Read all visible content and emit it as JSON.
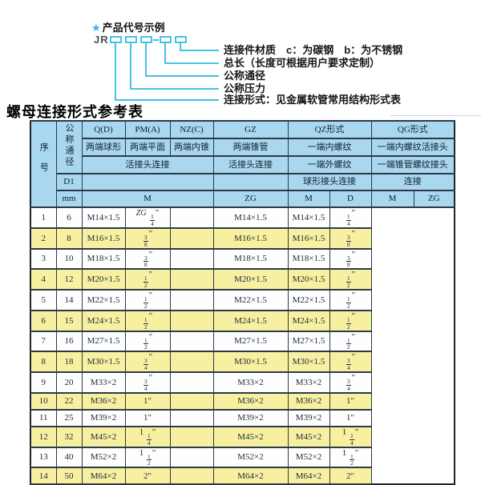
{
  "diagram": {
    "star": "★",
    "title": "产品代号示例",
    "prefix": "JR",
    "labels": [
      "连接件材质　c：为碳钢　b：为不锈钢",
      "总长（长度可根据用户要求定制）",
      "公称通径",
      "公称压力",
      "连接形式：见金属软管常用结构形式表"
    ]
  },
  "table_title": "螺母连接形式参考表",
  "table": {
    "header": {
      "seq": "序号",
      "dn": "公称通径",
      "d1": "D1",
      "mm": "mm",
      "q": "Q(D)",
      "q_desc": "两端球形",
      "pm": "PM(A)",
      "pm_desc": "两端平面",
      "nz": "NZ(C)",
      "nz_desc": "两端内锥",
      "union_conn": "活接头连接",
      "gz": "GZ",
      "gz_desc": "两端锥管",
      "gz_conn": "活接头连接",
      "qz": "QZ形式",
      "qz_desc1": "一端内螺纹",
      "qz_desc2": "一端外螺纹",
      "qz_conn": "球形接头连接",
      "qg": "QG形式",
      "qg_desc1": "一端内螺纹活接头",
      "qg_desc2": "一端锥管螺纹接头",
      "qg_conn": "连接",
      "m": "M",
      "d": "D",
      "zg": "ZG"
    },
    "columns": [
      "seq",
      "dn_mm",
      "m",
      "gz_zg",
      "qz_m",
      "qz_d",
      "qg_m",
      "qg_zg"
    ],
    "rows": [
      [
        "1",
        "6",
        "M14×1.5",
        "ZG 1/4\"",
        "",
        "M14×1.5",
        "M14×1.5",
        "1/4\""
      ],
      [
        "2",
        "8",
        "M16×1.5",
        "3/8\"",
        "",
        "M16×1.5",
        "M16×1.5",
        "3/8\""
      ],
      [
        "3",
        "10",
        "M18×1.5",
        "3/8\"",
        "",
        "M18×1.5",
        "M18×1.5",
        "3/8\""
      ],
      [
        "4",
        "12",
        "M20×1.5",
        "1/2\"",
        "",
        "M20×1.5",
        "M20×1.5",
        "1/2\""
      ],
      [
        "5",
        "14",
        "M22×1.5",
        "1/2\"",
        "",
        "M22×1.5",
        "M22×1.5",
        "1/2\""
      ],
      [
        "6",
        "15",
        "M24×1.5",
        "1/2\"",
        "",
        "M24×1.5",
        "M24×1.5",
        "1/2\""
      ],
      [
        "7",
        "16",
        "M27×1.5",
        "1/2\"",
        "",
        "M27×1.5",
        "M27×1.5",
        "1/2\""
      ],
      [
        "8",
        "18",
        "M30×1.5",
        "3/4\"",
        "",
        "M30×1.5",
        "M30×1.5",
        "3/4\""
      ],
      [
        "9",
        "20",
        "M33×2",
        "3/4\"",
        "",
        "M33×2",
        "M33×2",
        "3/4\""
      ],
      [
        "10",
        "22",
        "M36×2",
        "1\"",
        "",
        "M36×2",
        "M36×2",
        "1\""
      ],
      [
        "11",
        "25",
        "M39×2",
        "1\"",
        "",
        "M39×2",
        "M39×2",
        "1\""
      ],
      [
        "12",
        "32",
        "M45×2",
        "1 1/4\"",
        "",
        "M45×2",
        "M45×2",
        "1 1/4\""
      ],
      [
        "13",
        "40",
        "M52×2",
        "1 1/2\"",
        "",
        "M52×2",
        "M52×2",
        "1 1/2\""
      ],
      [
        "14",
        "50",
        "M64×2",
        "2\"",
        "",
        "M64×2",
        "M64×2",
        "2\""
      ]
    ]
  },
  "colors": {
    "accent_cyan": "#47c2e6",
    "header_blue": "#a8d7ef",
    "row_yellow": "#f7f0a0",
    "row_white": "#fefefe",
    "border": "#2d3a46"
  }
}
